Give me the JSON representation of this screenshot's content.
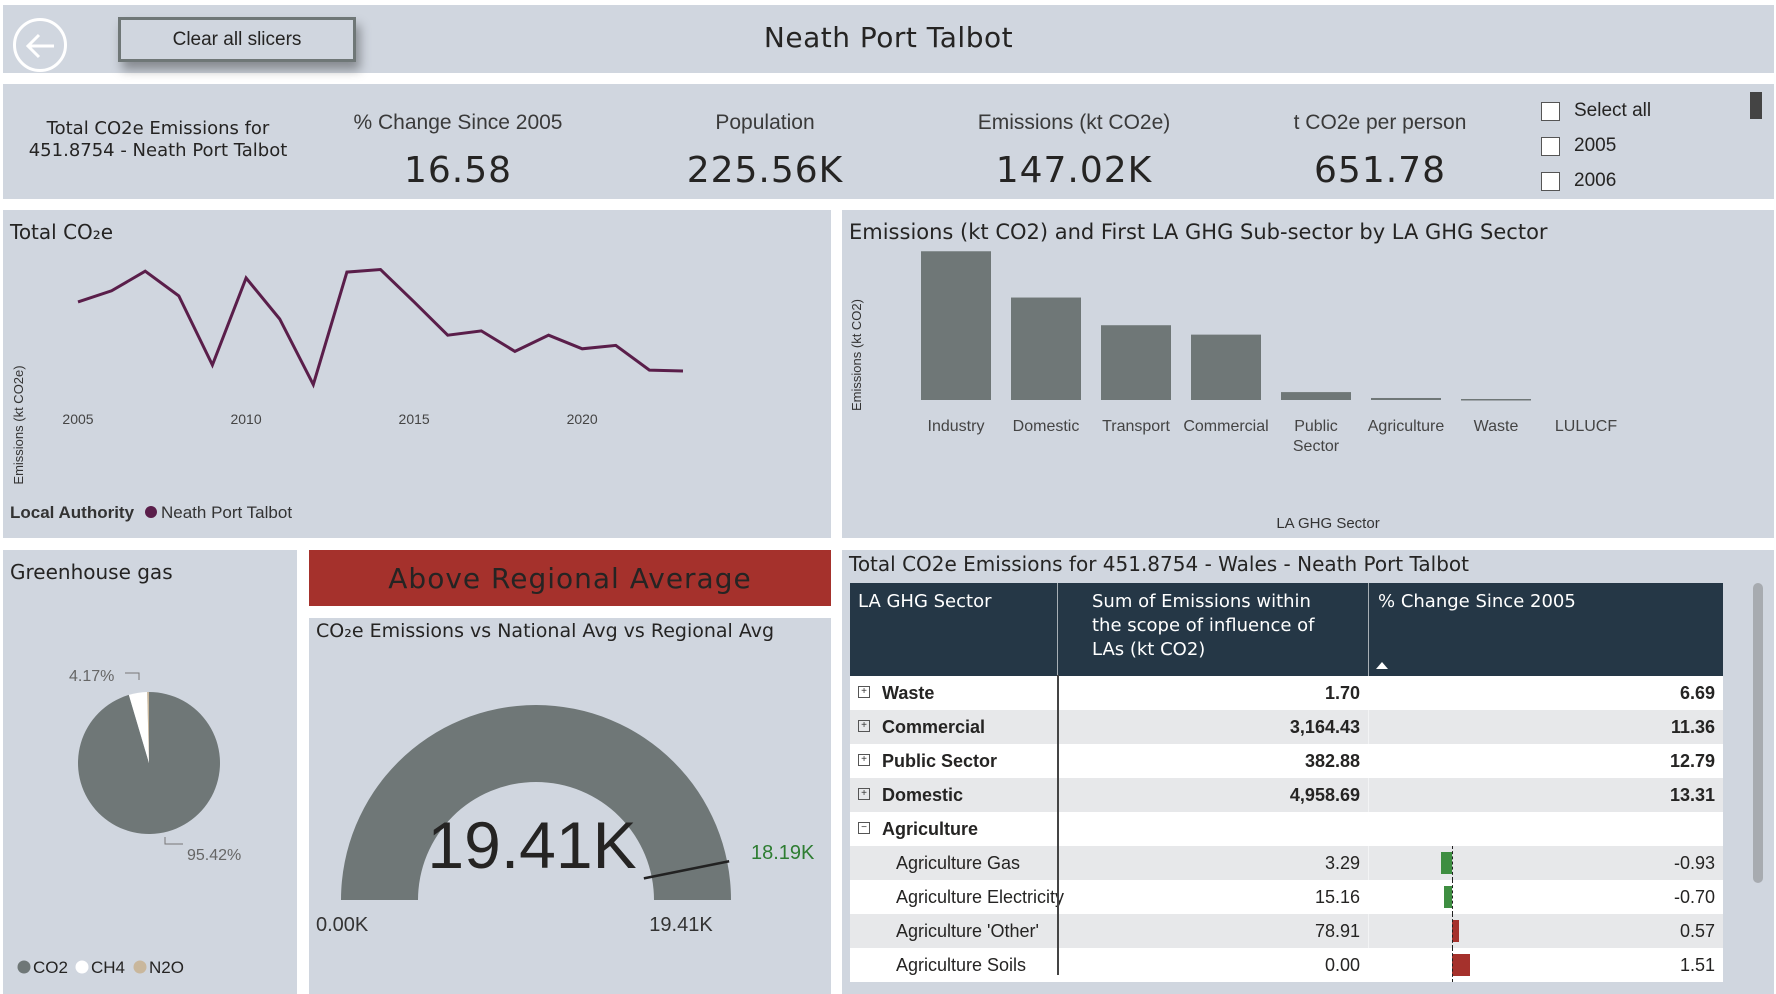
{
  "header": {
    "title": "Neath Port Talbot",
    "clear_slicers_label": "Clear all slicers"
  },
  "kpis": {
    "title_block_line1": "Total CO2e Emissions for",
    "title_block_line2": "451.8754 - Neath Port Talbot",
    "items": [
      {
        "label": "% Change Since 2005",
        "value": "16.58"
      },
      {
        "label": "Population",
        "value": "225.56K"
      },
      {
        "label": "Emissions (kt CO2e)",
        "value": "147.02K"
      },
      {
        "label": "t CO2e per person",
        "value": "651.78"
      }
    ]
  },
  "year_slicer": {
    "items": [
      "Select all",
      "2005",
      "2006"
    ]
  },
  "line_chart": {
    "title": "Total CO₂e",
    "ylabel": "Emissions (kt CO2e)",
    "legend_title": "Local Authority",
    "legend_item": "Neath Port Talbot",
    "line_color": "#5a1e4a",
    "x_ticks": [
      "2005",
      "2010",
      "2015",
      "2020"
    ]
  },
  "bar_chart": {
    "title": "Emissions (kt CO2) and First LA GHG Sub-sector by LA GHG Sector",
    "ylabel": "Emissions (kt CO2)",
    "xlabel": "LA GHG Sector",
    "bar_color": "#6f7777",
    "categories": [
      "Industry",
      "Domestic",
      "Transport",
      "Commercial",
      "Public Sector",
      "Agriculture",
      "Waste",
      "LULUCF"
    ],
    "category_lines": [
      [
        "Industry"
      ],
      [
        "Domestic"
      ],
      [
        "Transport"
      ],
      [
        "Commercial"
      ],
      [
        "Public",
        "Sector"
      ],
      [
        "Agriculture"
      ],
      [
        "Waste"
      ],
      [
        "LULUCF"
      ]
    ]
  },
  "pie_chart": {
    "title": "Greenhouse gas",
    "label_ch4": "4.17%",
    "label_co2": "95.42%",
    "legend": [
      {
        "name": "CO2",
        "color": "#6f7777"
      },
      {
        "name": "CH4",
        "color": "#ffffff"
      },
      {
        "name": "N2O",
        "color": "#c9b79c"
      }
    ]
  },
  "banner": {
    "text": "Above Regional Average",
    "color": "#a5312c"
  },
  "gauge": {
    "title": "CO₂e Emissions vs National Avg vs Regional Avg",
    "value_label": "19.41K",
    "min_label": "0.00K",
    "max_label": "19.41K",
    "target_label": "18.19K",
    "target_color": "#2e7d32",
    "fill_fraction": 1.0,
    "target_fraction": 0.937
  },
  "table": {
    "title": "Total CO2e Emissions for 451.8754 - Wales - Neath Port Talbot",
    "header_color": "#253746",
    "columns": [
      "LA GHG Sector",
      "Sum of Emissions within the scope of influence of LAs (kt CO2)",
      "% Change Since 2005"
    ],
    "rows": [
      {
        "name": "Waste",
        "level": 0,
        "expander": "+",
        "emissions": "1.70",
        "change": "6.69"
      },
      {
        "name": "Commercial",
        "level": 0,
        "expander": "+",
        "emissions": "3,164.43",
        "change": "11.36"
      },
      {
        "name": "Public Sector",
        "level": 0,
        "expander": "+",
        "emissions": "382.88",
        "change": "12.79"
      },
      {
        "name": "Domestic",
        "level": 0,
        "expander": "+",
        "emissions": "4,958.69",
        "change": "13.31"
      },
      {
        "name": "Agriculture",
        "level": 0,
        "expander": "−",
        "emissions": "",
        "change": ""
      },
      {
        "name": "Agriculture Gas",
        "level": 1,
        "emissions": "3.29",
        "change": "-0.93",
        "change_num": -0.93
      },
      {
        "name": "Agriculture Electricity",
        "level": 1,
        "emissions": "15.16",
        "change": "-0.70",
        "change_num": -0.7
      },
      {
        "name": "Agriculture 'Other'",
        "level": 1,
        "emissions": "78.91",
        "change": "0.57",
        "change_num": 0.57
      },
      {
        "name": "Agriculture Soils",
        "level": 1,
        "emissions": "0.00",
        "change": "1.51",
        "change_num": 1.51
      }
    ]
  },
  "chart_data": [
    {
      "type": "line",
      "title": "Total CO₂e",
      "ylabel": "Emissions (kt CO2e)",
      "x": [
        2005,
        2006,
        2007,
        2008,
        2009,
        2010,
        2011,
        2012,
        2013,
        2014,
        2015,
        2016,
        2017,
        2018,
        2019,
        2020,
        2021,
        2022,
        2023
      ],
      "series": [
        {
          "name": "Neath Port Talbot",
          "values": [
            8950,
            9080,
            9310,
            9020,
            8210,
            9230,
            8750,
            7980,
            9300,
            9330,
            8950,
            8560,
            8610,
            8370,
            8560,
            8400,
            8440,
            8150,
            8140
          ]
        }
      ],
      "ylim": [
        7800,
        9500
      ]
    },
    {
      "type": "bar",
      "title": "Emissions (kt CO2) and First LA GHG Sub-sector by LA GHG Sector",
      "xlabel": "LA GHG Sector",
      "ylabel": "Emissions (kt CO2)",
      "categories": [
        "Industry",
        "Domestic",
        "Transport",
        "Commercial",
        "Public Sector",
        "Agriculture",
        "Waste",
        "LULUCF"
      ],
      "values": [
        7200,
        4960,
        3620,
        3164.43,
        382.88,
        97.36,
        1.7,
        0
      ],
      "ylim": [
        0,
        7600
      ]
    },
    {
      "type": "pie",
      "title": "Greenhouse gas",
      "categories": [
        "CO2",
        "CH4",
        "N2O"
      ],
      "values": [
        95.42,
        4.17,
        0.41
      ]
    }
  ]
}
